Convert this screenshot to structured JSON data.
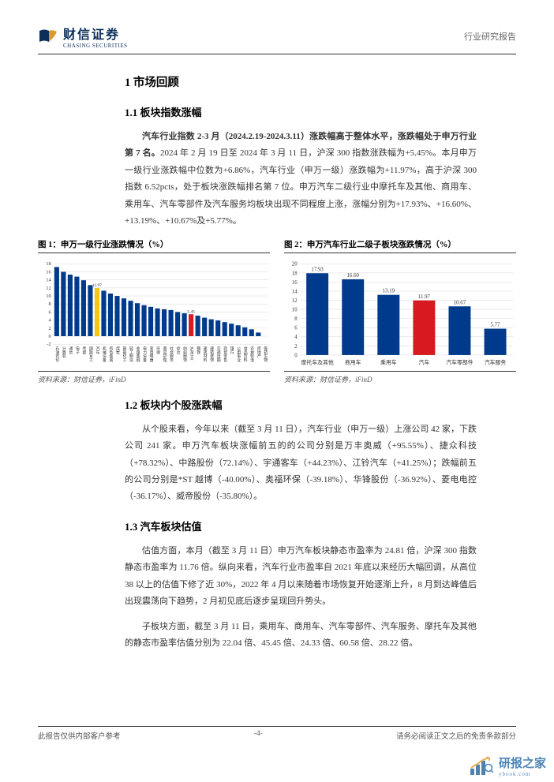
{
  "header": {
    "logo_cn": "财信证券",
    "logo_en": "CHASING SECURITIES",
    "right": "行业研究报告"
  },
  "h1": "1 市场回顾",
  "s11": {
    "title": "1.1 板块指数涨幅",
    "p_bold": "汽车行业指数 2-3 月（2024.2.19-2024.3.11）涨跌幅高于整体水平，涨跌幅处于申万行业第 7 名。",
    "p_rest": "2024 年 2 月 19 日至 2024 年 3 月 11 日，沪深 300 指数涨跌幅为+5.45%。本月申万一级行业涨跌幅中位数为+6.86%，汽车行业（申万一级）涨跌幅为+11.97%，高于沪深 300 指数 6.52pcts，处于板块涨跌幅排名第 7 位。申万汽车二级行业中摩托车及其他、商用车、乘用车、汽车零部件及汽车服务均板块出现不同程度上涨，涨幅分别为+17.93%、+16.60%、+13.19%、+10.67%及+5.77%。"
  },
  "chart1": {
    "title": "图 1：申万一级行业涨跌情况（%）",
    "source": "资料来源：财信证券，iFinD",
    "ylim": [
      -2,
      18
    ],
    "yticks": [
      -2,
      0,
      2,
      4,
      6,
      8,
      10,
      12,
      14,
      16,
      18
    ],
    "bg": "#ffffff",
    "grid_color": "#cccccc",
    "bar_color": "#003a8c",
    "hl1_color": "#f5c518",
    "hl2_color": "#d71920",
    "categories": [
      "石油石化",
      "计算机",
      "通信",
      "电子",
      "传媒",
      "国防军工",
      "汽车",
      "机械设备",
      "有色金属",
      "煤炭",
      "基础化工",
      "轻工制造",
      "非银金融",
      "电力设备",
      "家用电器",
      "环保",
      "美容护理",
      "社会服务",
      "综合",
      "纺织服饰",
      "沪深300",
      "钢铁",
      "建筑材料",
      "建筑装饰",
      "交通运输",
      "商贸零售",
      "银行",
      "公用事业",
      "食品饮料",
      "农林牧渔",
      "房地产",
      "医药生物"
    ],
    "values": [
      17.2,
      16.0,
      15.3,
      14.8,
      13.9,
      12.7,
      11.97,
      11.3,
      10.6,
      10.0,
      9.4,
      8.8,
      8.2,
      7.7,
      7.3,
      6.9,
      6.7,
      6.5,
      6.0,
      5.7,
      5.45,
      5.1,
      4.6,
      4.2,
      3.9,
      3.5,
      3.1,
      2.7,
      2.2,
      1.7,
      0.9,
      -0.6
    ],
    "hl1_index": 6,
    "hl1_label": "11.97",
    "hl2_index": 20,
    "hl2_label": "5.45"
  },
  "chart2": {
    "title": "图 2：申万汽车行业二级子板块涨跌情况（%）",
    "source": "资料来源：财信证券，iFinD",
    "ylim": [
      0,
      20
    ],
    "yticks": [
      0,
      2,
      4,
      6,
      8,
      10,
      12,
      14,
      16,
      18,
      20
    ],
    "bg": "#ffffff",
    "grid_color": "#cccccc",
    "bar_color": "#003a8c",
    "hl_color": "#d71920",
    "categories": [
      "摩托车及其他",
      "商用车",
      "乘用车",
      "汽车",
      "汽车零部件",
      "汽车服务"
    ],
    "values": [
      17.93,
      16.6,
      13.19,
      11.97,
      10.67,
      5.77
    ],
    "hl_index": 3
  },
  "s12": {
    "title": "1.2 板块内个股涨跌幅",
    "p": "从个股来看，今年以来（截至 3 月 11 日），汽车行业（申万一级）上涨公司 42 家，下跌公司 241 家。申万汽车板块涨幅前五的的公司分别是万丰奥威（+95.55%）、捷众科技（+78.32%）、中路股份（72.14%）、宇通客车（+44.23%）、江铃汽车（+41.25%）；跌幅前五的公司分别是*ST 越博（-40.00%）、奥福环保（-39.18%）、华锋股份（-36.92%）、菱电电控（-36.17%）、威帝股份（-35.80%）。"
  },
  "s13": {
    "title": "1.3 汽车板块估值",
    "p1": "估值方面，本月（截至 3 月 11 日）申万汽车板块静态市盈率为 24.81 倍，沪深 300 指数静态市盈率为 11.76 倍。纵向来看，汽车行业市盈率自 2021 年底以来经历大幅回调，从高位 38 以上的估值下修了近 30%，2022 年 4 月以来随着市场恢复开始逐渐上升，8 月到达峰值后出现震荡向下趋势，2 月初见底后逐步呈现回升势头。",
    "p2": "子板块方面，截至 3 月 11 日，乘用车、商用车、汽车零部件、汽车服务、摩托车及其他的静态市盈率估值分别为 22.04 倍、45.45 倍、24.33 倍、60.58 倍、28.22 倍。"
  },
  "footer": {
    "left": "此报告仅供内部客户参考",
    "center": "-4-",
    "right": "请务必阅读正文之后的免责条款部分"
  },
  "watermark": {
    "text": "研报之家",
    "sub": "ybook.com"
  }
}
